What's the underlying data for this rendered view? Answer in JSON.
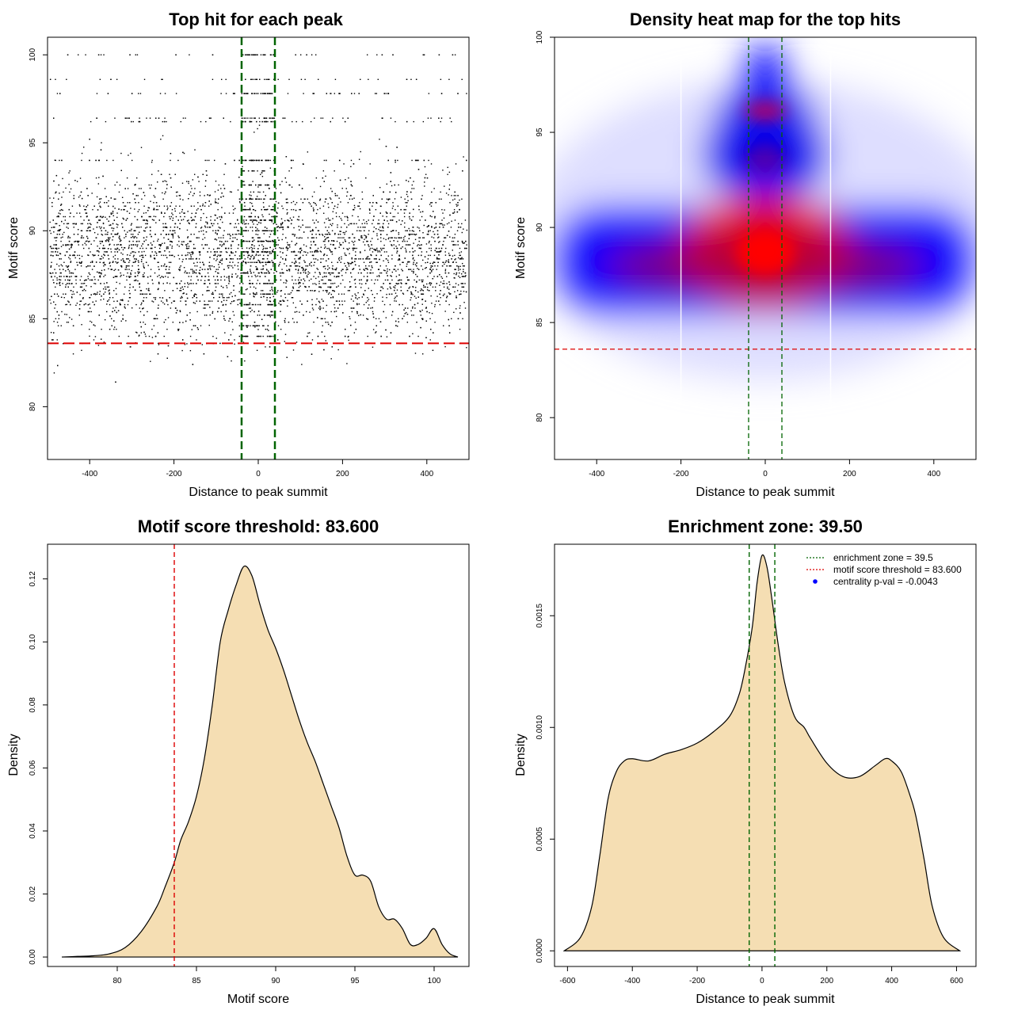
{
  "colors": {
    "frame": "#000000",
    "threshold_line": "#dd0000",
    "zone_line": "#006400",
    "fill": "#f5deb3",
    "heat_low": "#ffffff",
    "heat_mid": "#0000ff",
    "heat_high": "#ff0000",
    "legend_dot": "#0000ff"
  },
  "chart_data": [
    {
      "id": "scatter",
      "type": "scatter",
      "title": "Top hit for each peak",
      "xlabel": "Distance to peak summit",
      "ylabel": "Motif score",
      "xlim": [
        -500,
        500
      ],
      "ylim": [
        77,
        101
      ],
      "xticks": [
        -400,
        -200,
        0,
        200,
        400
      ],
      "yticks": [
        80,
        85,
        90,
        95,
        100
      ],
      "hline": 83.6,
      "vlines": [
        -39.5,
        39.5
      ],
      "n_points": 6000,
      "points_description": "each black dot is one peak's top motif hit; densest between scores 85 and 92, spread across -500 to 500",
      "score_levels": [
        100,
        98.6,
        97.8,
        96.4,
        96.2,
        94.0,
        93.4,
        92.6,
        91.8,
        91.2,
        90.6,
        90.0,
        89.4,
        88.8,
        88.2,
        87.6,
        87.0,
        86.4,
        85.8,
        85.2,
        84.6,
        84.0
      ]
    },
    {
      "id": "heatmap",
      "type": "heatmap",
      "title": "Density heat map for the top hits",
      "xlabel": "Distance to peak summit",
      "ylabel": "Motif score",
      "xlim": [
        -500,
        500
      ],
      "ylim": [
        77.8,
        100
      ],
      "xticks": [
        -400,
        -200,
        0,
        200,
        400
      ],
      "yticks": [
        80,
        85,
        90,
        95,
        100
      ],
      "hline": 83.6,
      "vlines": [
        -39.5,
        39.5
      ],
      "white_vlines": [
        -200,
        155
      ],
      "density_peaks": [
        {
          "x": 0,
          "y": 88.6,
          "level": "high"
        },
        {
          "x": 0,
          "y": 96.1,
          "level": "medium"
        },
        {
          "x": 0,
          "y": 93.6,
          "level": "medium"
        }
      ]
    },
    {
      "id": "score_density",
      "type": "area",
      "title": "Motif score threshold: 83.600",
      "xlabel": "Motif score",
      "ylabel": "Density",
      "xlim": [
        75.6,
        102.2
      ],
      "ylim": [
        -0.003,
        0.131
      ],
      "xticks": [
        80,
        85,
        90,
        95,
        100
      ],
      "yticks": [
        0.0,
        0.02,
        0.04,
        0.06,
        0.08,
        0.1,
        0.12
      ],
      "ytick_labels": [
        "0.00",
        "0.02",
        "0.04",
        "0.06",
        "0.08",
        "0.10",
        "0.12"
      ],
      "vline": 83.6,
      "x": [
        76.5,
        77.5,
        78.5,
        79.5,
        80.5,
        81.5,
        82.5,
        83.0,
        83.6,
        84.0,
        84.5,
        85.0,
        85.5,
        86.0,
        86.5,
        87.0,
        87.5,
        88.0,
        88.5,
        89.0,
        89.5,
        90.0,
        90.5,
        91.0,
        91.5,
        92.0,
        92.5,
        93.0,
        93.5,
        94.0,
        94.5,
        95.0,
        95.5,
        96.0,
        96.5,
        97.0,
        97.5,
        98.0,
        98.5,
        99.0,
        99.5,
        100.0,
        100.5,
        101.0,
        101.5
      ],
      "y": [
        0.0,
        0.0002,
        0.0004,
        0.001,
        0.003,
        0.008,
        0.016,
        0.022,
        0.03,
        0.037,
        0.043,
        0.051,
        0.063,
        0.08,
        0.1,
        0.11,
        0.118,
        0.124,
        0.121,
        0.112,
        0.104,
        0.098,
        0.091,
        0.083,
        0.075,
        0.068,
        0.062,
        0.055,
        0.048,
        0.041,
        0.032,
        0.026,
        0.026,
        0.024,
        0.016,
        0.012,
        0.012,
        0.009,
        0.004,
        0.004,
        0.006,
        0.009,
        0.004,
        0.001,
        0.0
      ]
    },
    {
      "id": "distance_density",
      "type": "area",
      "title": "Enrichment zone: 39.50",
      "xlabel": "Distance to peak summit",
      "ylabel": "Density",
      "xlim": [
        -640,
        660
      ],
      "ylim": [
        -7e-05,
        0.00182
      ],
      "xticks": [
        -600,
        -400,
        -200,
        0,
        200,
        400,
        600
      ],
      "yticks": [
        0.0,
        0.0005,
        0.001,
        0.0015
      ],
      "ytick_labels": [
        "0.0000",
        "0.0005",
        "0.0010",
        "0.0015"
      ],
      "vlines": [
        -39.5,
        39.5
      ],
      "x": [
        -610,
        -560,
        -525,
        -500,
        -475,
        -450,
        -425,
        -400,
        -350,
        -300,
        -250,
        -200,
        -150,
        -100,
        -70,
        -50,
        -30,
        -15,
        0,
        15,
        30,
        50,
        70,
        100,
        130,
        150,
        200,
        250,
        300,
        350,
        380,
        400,
        430,
        460,
        475,
        500,
        525,
        560,
        610
      ],
      "y": [
        0.0,
        6e-05,
        0.0002,
        0.00043,
        0.00068,
        0.0008,
        0.00085,
        0.00086,
        0.00085,
        0.00088,
        0.0009,
        0.00093,
        0.00098,
        0.00105,
        0.00115,
        0.00128,
        0.00145,
        0.00165,
        0.00177,
        0.00172,
        0.00158,
        0.00137,
        0.0012,
        0.00105,
        0.001,
        0.00095,
        0.00084,
        0.00078,
        0.00078,
        0.00083,
        0.00086,
        0.00085,
        0.0008,
        0.00068,
        0.0006,
        0.00041,
        0.0002,
        6e-05,
        0.0
      ],
      "legend": [
        {
          "label": "enrichment zone = 39.5",
          "style": "dotted-line",
          "color": "#006400"
        },
        {
          "label": "motif score threshold = 83.600",
          "style": "dotted-line",
          "color": "#dd0000"
        },
        {
          "label": "centrality p-val = -0.0043",
          "style": "dot",
          "color": "#0000ff"
        }
      ]
    }
  ]
}
